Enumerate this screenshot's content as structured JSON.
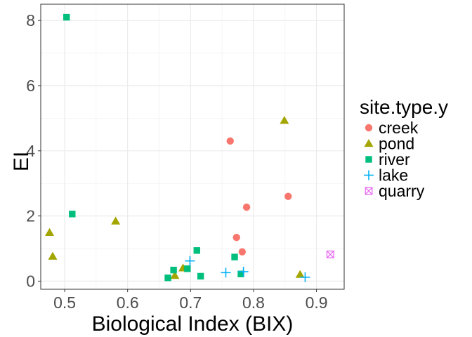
{
  "chart_data": {
    "type": "scatter",
    "xlabel": "Biological Index (BIX)",
    "ylabel": "EI",
    "xlim": [
      0.462,
      0.944
    ],
    "ylim": [
      -0.25,
      8.5
    ],
    "xticks": [
      0.5,
      0.6,
      0.7,
      0.8,
      0.9
    ],
    "xtick_labels": [
      "0.5",
      "0.6",
      "0.7",
      "0.8",
      "0.9"
    ],
    "yticks": [
      0,
      2,
      4,
      6,
      8
    ],
    "ytick_labels": [
      "0",
      "2",
      "4",
      "6",
      "8"
    ],
    "grid": true,
    "legend": {
      "title": "site.type.y",
      "position": "right"
    },
    "series": [
      {
        "name": "creek",
        "marker": "circle",
        "color": "#F8766D",
        "points": [
          {
            "x": 0.763,
            "y": 4.3
          },
          {
            "x": 0.789,
            "y": 2.27
          },
          {
            "x": 0.855,
            "y": 2.6
          },
          {
            "x": 0.773,
            "y": 1.34
          },
          {
            "x": 0.782,
            "y": 0.9
          }
        ]
      },
      {
        "name": "pond",
        "marker": "triangle",
        "color": "#A3A500",
        "points": [
          {
            "x": 0.849,
            "y": 4.93
          },
          {
            "x": 0.476,
            "y": 1.49
          },
          {
            "x": 0.581,
            "y": 1.84
          },
          {
            "x": 0.481,
            "y": 0.76
          },
          {
            "x": 0.688,
            "y": 0.4
          },
          {
            "x": 0.675,
            "y": 0.17
          },
          {
            "x": 0.874,
            "y": 0.2
          }
        ]
      },
      {
        "name": "river",
        "marker": "square",
        "color": "#00BF7D",
        "points": [
          {
            "x": 0.503,
            "y": 8.1
          },
          {
            "x": 0.512,
            "y": 2.06
          },
          {
            "x": 0.71,
            "y": 0.94
          },
          {
            "x": 0.77,
            "y": 0.74
          },
          {
            "x": 0.673,
            "y": 0.34
          },
          {
            "x": 0.695,
            "y": 0.38
          },
          {
            "x": 0.664,
            "y": 0.1
          },
          {
            "x": 0.716,
            "y": 0.15
          },
          {
            "x": 0.78,
            "y": 0.22
          }
        ]
      },
      {
        "name": "lake",
        "marker": "plus",
        "color": "#00B0F6",
        "points": [
          {
            "x": 0.699,
            "y": 0.62
          },
          {
            "x": 0.756,
            "y": 0.26
          },
          {
            "x": 0.784,
            "y": 0.29
          },
          {
            "x": 0.882,
            "y": 0.12
          }
        ]
      },
      {
        "name": "quarry",
        "marker": "square-x",
        "color": "#E76BF3",
        "points": [
          {
            "x": 0.922,
            "y": 0.82
          }
        ]
      }
    ]
  }
}
